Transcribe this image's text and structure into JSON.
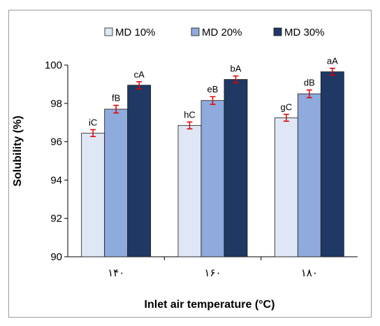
{
  "chart_data": {
    "type": "bar",
    "title": "",
    "xlabel": "Inlet air temperature (°C)",
    "ylabel": "Solubility (%)",
    "ylim": [
      90,
      100
    ],
    "yticks": [
      90,
      92,
      94,
      96,
      98,
      100
    ],
    "grid": false,
    "legend_position": "top",
    "categories": [
      "۱۴۰",
      "۱۶۰",
      "۱۸۰"
    ],
    "series": [
      {
        "name": "MD 10%",
        "color": "#dfe6f6",
        "values": [
          96.45,
          96.85,
          97.25
        ],
        "errors": [
          0.18,
          0.18,
          0.18
        ],
        "labels": [
          "iC",
          "hC",
          "gC"
        ]
      },
      {
        "name": "MD 20%",
        "color": "#8faadc",
        "values": [
          97.7,
          98.15,
          98.5
        ],
        "errors": [
          0.2,
          0.2,
          0.2
        ],
        "labels": [
          "fB",
          "eB",
          "dB"
        ]
      },
      {
        "name": "MD 30%",
        "color": "#1f3864",
        "values": [
          98.95,
          99.25,
          99.65
        ],
        "errors": [
          0.18,
          0.18,
          0.18
        ],
        "labels": [
          "cA",
          "bA",
          "aA"
        ]
      }
    ],
    "error_bar_color": "#e00000"
  }
}
